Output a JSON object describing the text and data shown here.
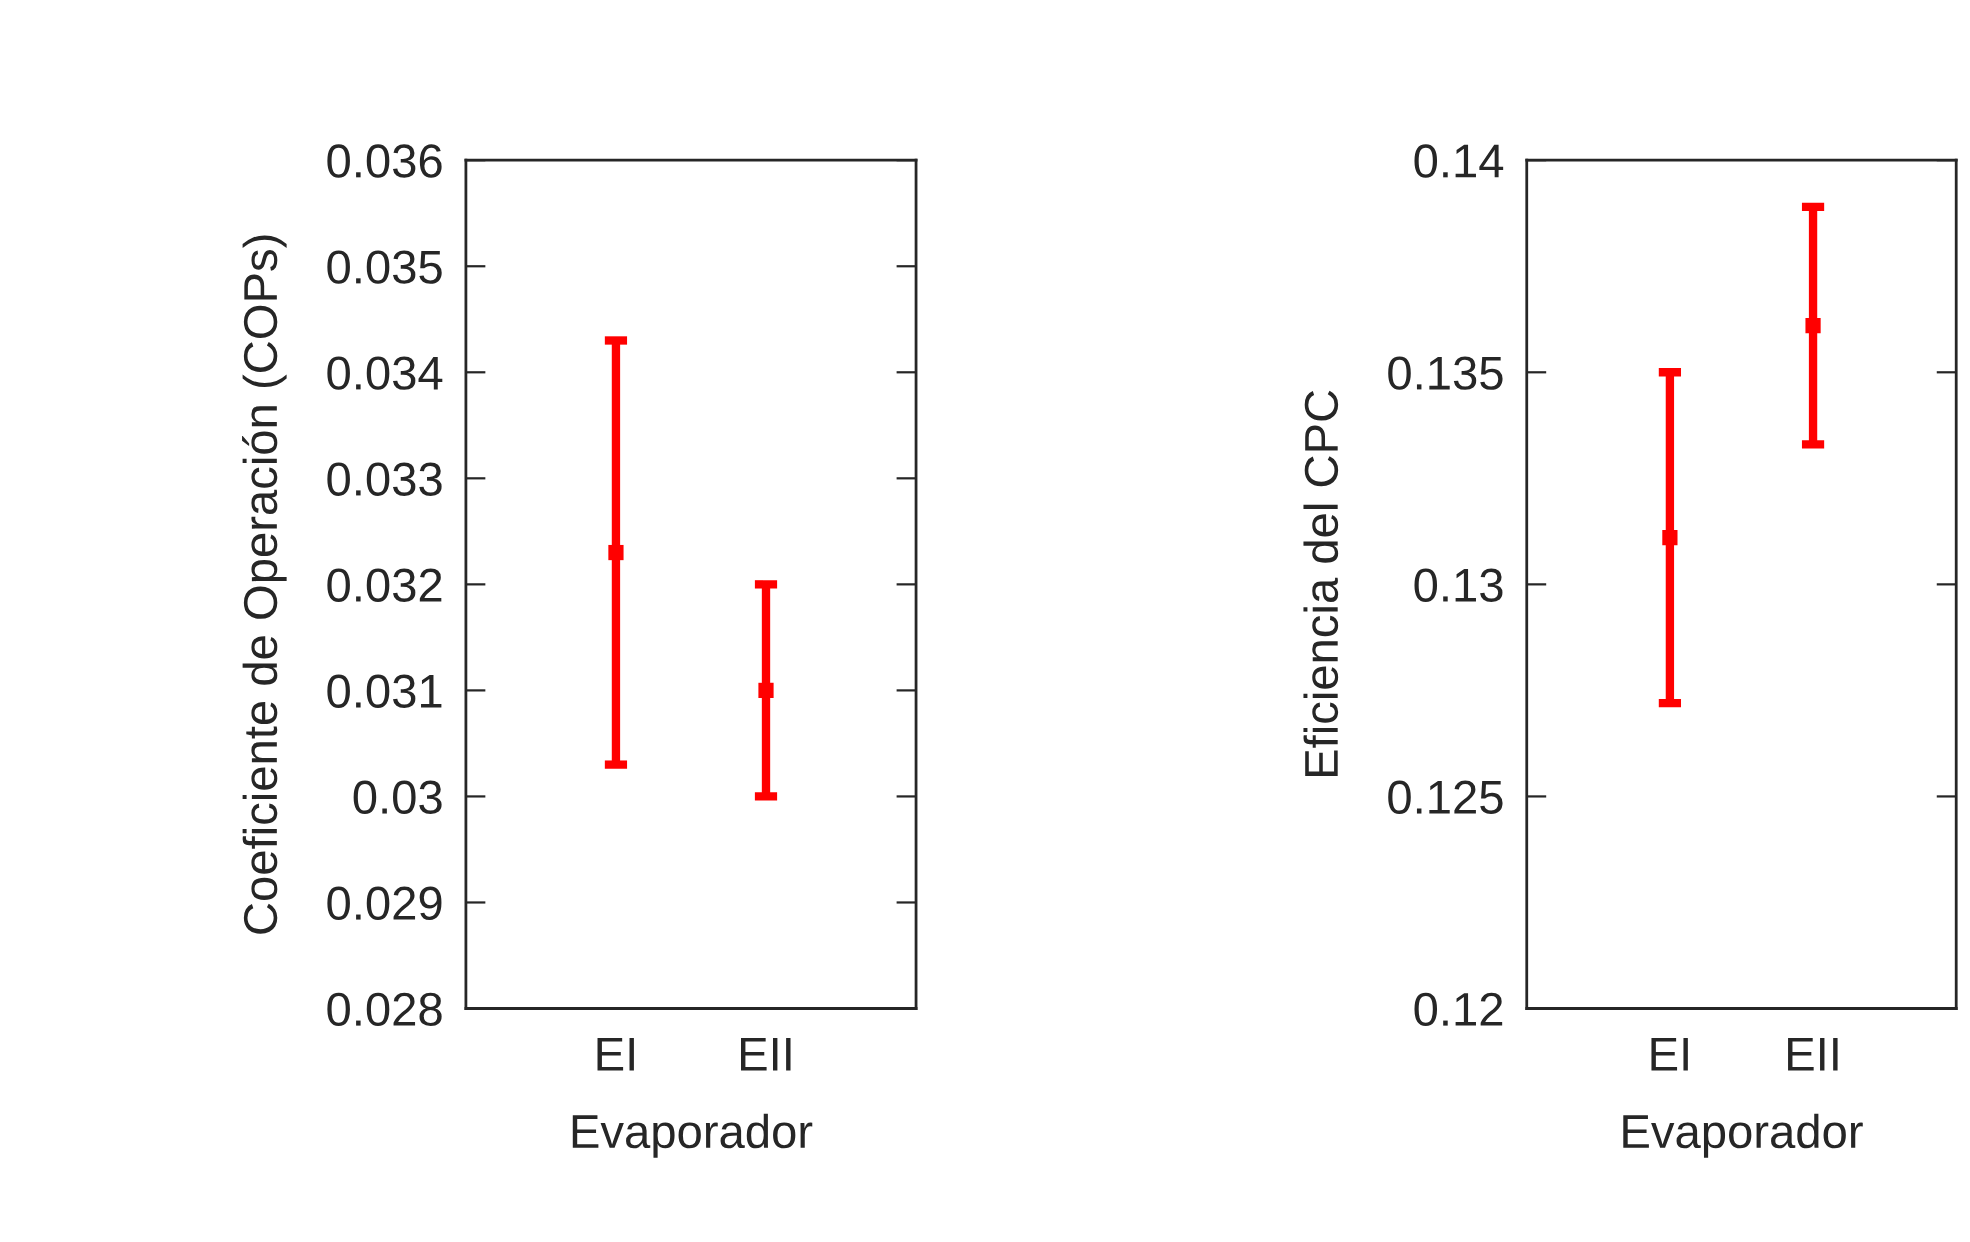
{
  "chart_data": [
    {
      "type": "scatter",
      "xlabel": "Evaporador",
      "ylabel": "Coeficiente de Operación (COPs)",
      "categories": [
        "EI",
        "EII"
      ],
      "series": [
        {
          "color": "#ff0000",
          "values": [
            0.0323,
            0.031
          ],
          "errors": [
            [
              0.0303,
              0.0343
            ],
            [
              0.03,
              0.032
            ]
          ]
        }
      ],
      "marker": "square",
      "ylim": [
        0.028,
        0.036
      ],
      "yticks": [
        0.028,
        0.029,
        0.03,
        0.031,
        0.032,
        0.033,
        0.034,
        0.035,
        0.036
      ],
      "grid": false,
      "legend": false
    },
    {
      "type": "scatter",
      "xlabel": "Evaporador",
      "ylabel": "Eficiencia del CPC",
      "categories": [
        "EI",
        "EII"
      ],
      "series": [
        {
          "color": "#ff0000",
          "values": [
            0.1311,
            0.1361
          ],
          "errors": [
            [
              0.1272,
              0.135
            ],
            [
              0.1333,
              0.1389
            ]
          ]
        }
      ],
      "marker": "square",
      "ylim": [
        0.12,
        0.14
      ],
      "yticks": [
        0.12,
        0.125,
        0.13,
        0.135,
        0.14
      ],
      "grid": false,
      "legend": false
    }
  ]
}
